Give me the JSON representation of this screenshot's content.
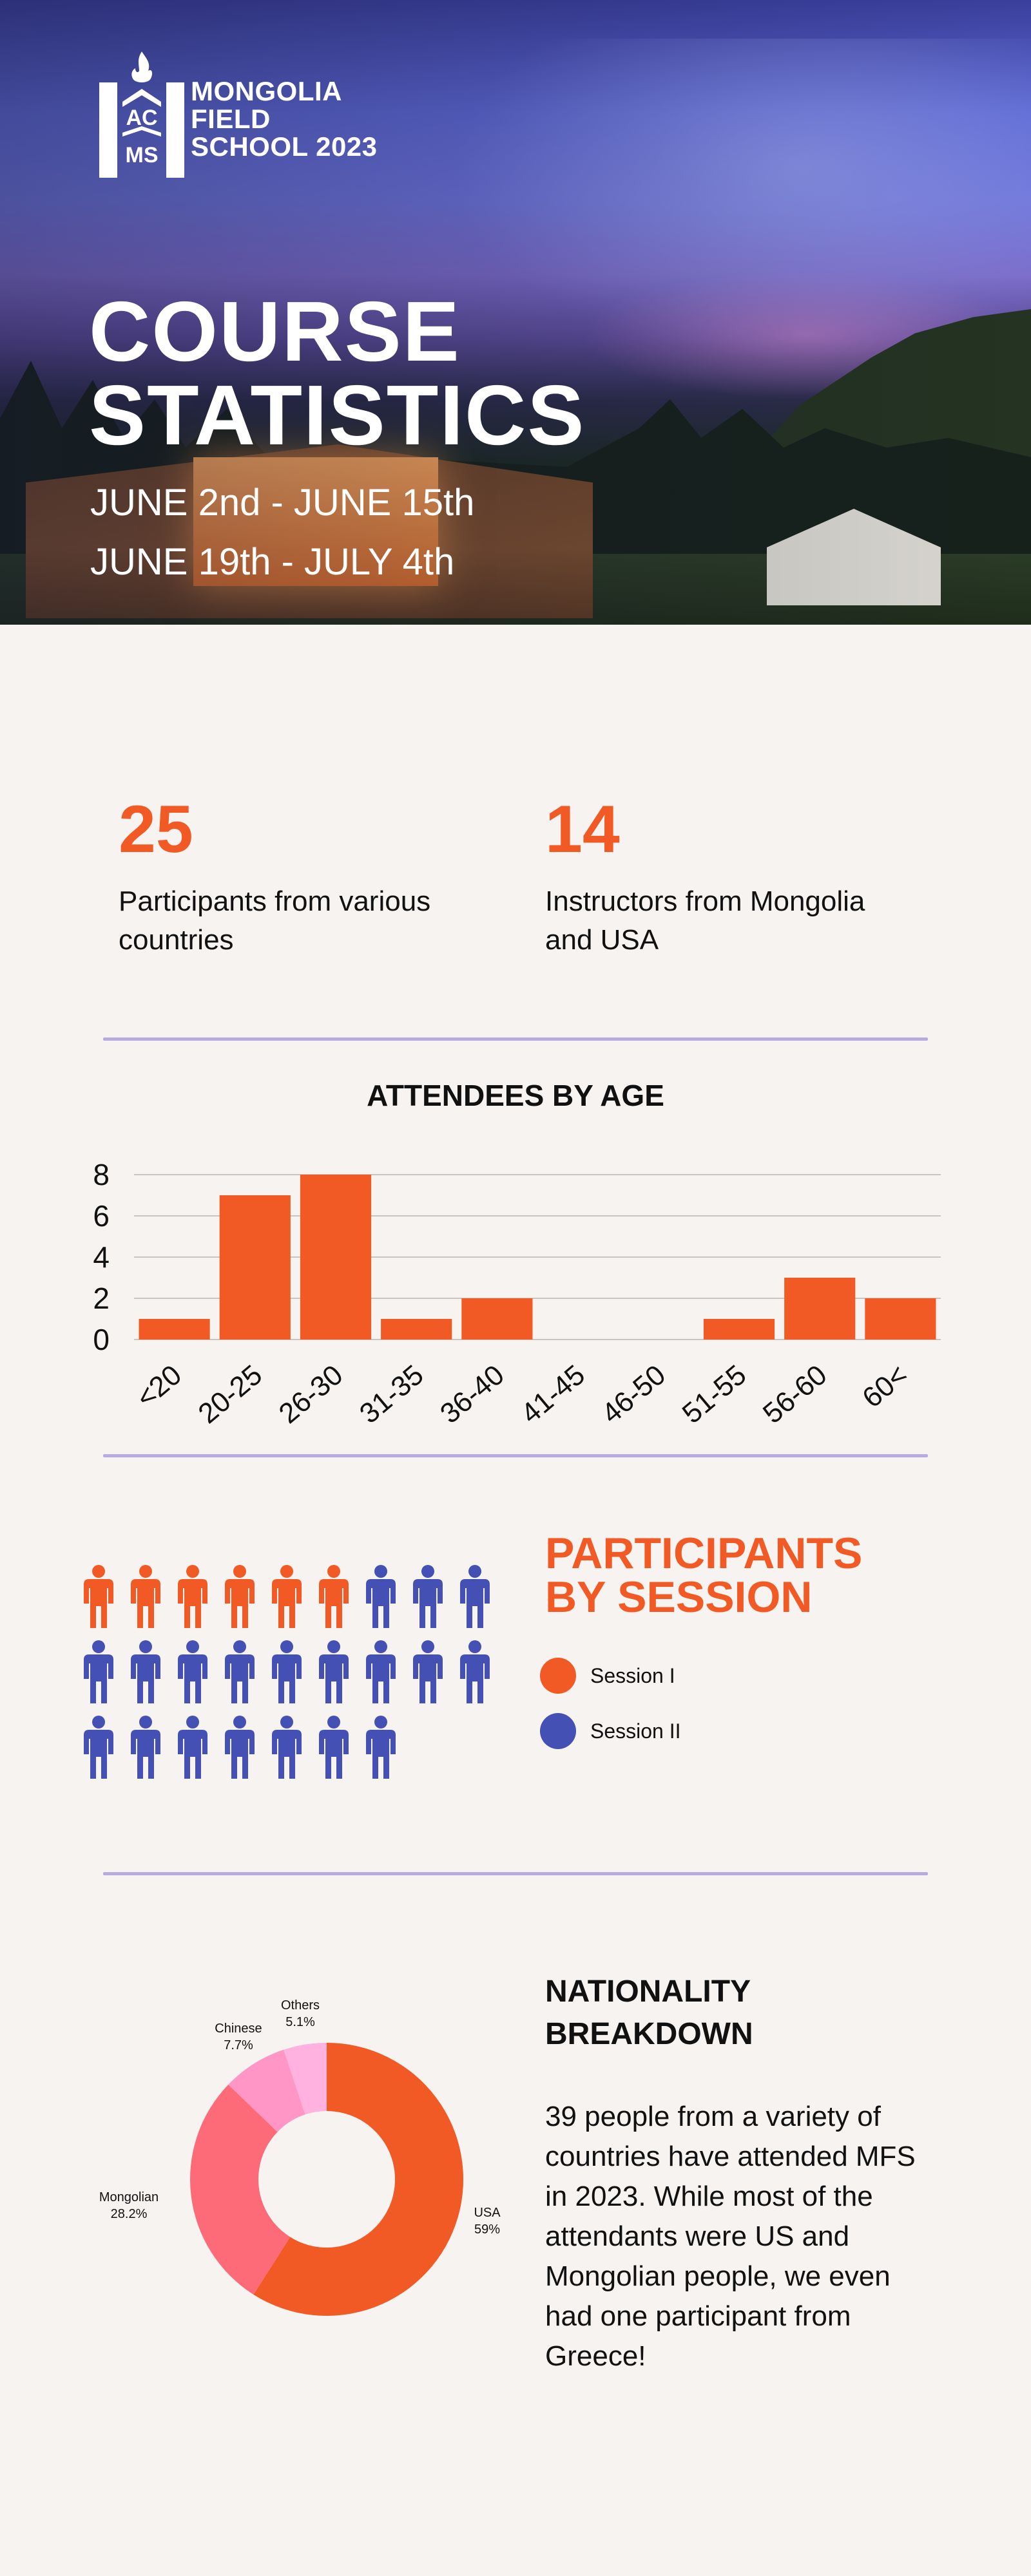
{
  "logo": {
    "letters_top": "AC",
    "letters_bottom": "MS",
    "lines": [
      "MONGOLIA",
      "FIELD",
      "SCHOOL 2023"
    ]
  },
  "hero": {
    "title_lines": [
      "COURSE",
      "STATISTICS"
    ],
    "dates": [
      "JUNE 2nd - JUNE 15th",
      "JUNE 19th - JULY 4th"
    ]
  },
  "stats": [
    {
      "value": "25",
      "description": "Participants from various countries"
    },
    {
      "value": "14",
      "description": "Instructors from Mongolia and USA"
    }
  ],
  "colors": {
    "accent": "#f15a24",
    "session2": "#4450b4",
    "divider": "#b6acdf",
    "pie": [
      "#f15a24",
      "#fe6b78",
      "#ff96c6",
      "#ffb1e0"
    ]
  },
  "sessions": {
    "title_lines": [
      "PARTICIPANTS",
      "BY SESSION"
    ],
    "legend": [
      {
        "label": "Session I",
        "count": 6
      },
      {
        "label": "Session II",
        "count": 19
      }
    ],
    "icon": "person-icon"
  },
  "nationality": {
    "title_lines": [
      "NATIONALITY",
      "BREAKDOWN"
    ],
    "body": "39 people from a variety of countries have attended MFS in 2023. While most of the attendants were US and Mongolian people, we even had one participant from Greece!"
  },
  "chart_data": [
    {
      "type": "bar",
      "title": "ATTENDEES BY AGE",
      "categories": [
        "<20",
        "20-25",
        "26-30",
        "31-35",
        "36-40",
        "41-45",
        "46-50",
        "51-55",
        "56-60",
        "60<"
      ],
      "values": [
        1,
        7,
        8,
        1,
        2,
        0,
        0,
        1,
        3,
        2
      ],
      "ylim": [
        0,
        8
      ],
      "yticks": [
        "0",
        "2",
        "4",
        "6",
        "8"
      ],
      "grid": true
    },
    {
      "type": "pie",
      "donut": true,
      "slices": [
        {
          "label": "USA",
          "pct_label": "59%",
          "value": 59
        },
        {
          "label": "Mongolian",
          "pct_label": "28.2%",
          "value": 28.2
        },
        {
          "label": "Chinese",
          "pct_label": "7.7%",
          "value": 7.7
        },
        {
          "label": "Others",
          "pct_label": "5.1%",
          "value": 5.1
        }
      ]
    }
  ]
}
